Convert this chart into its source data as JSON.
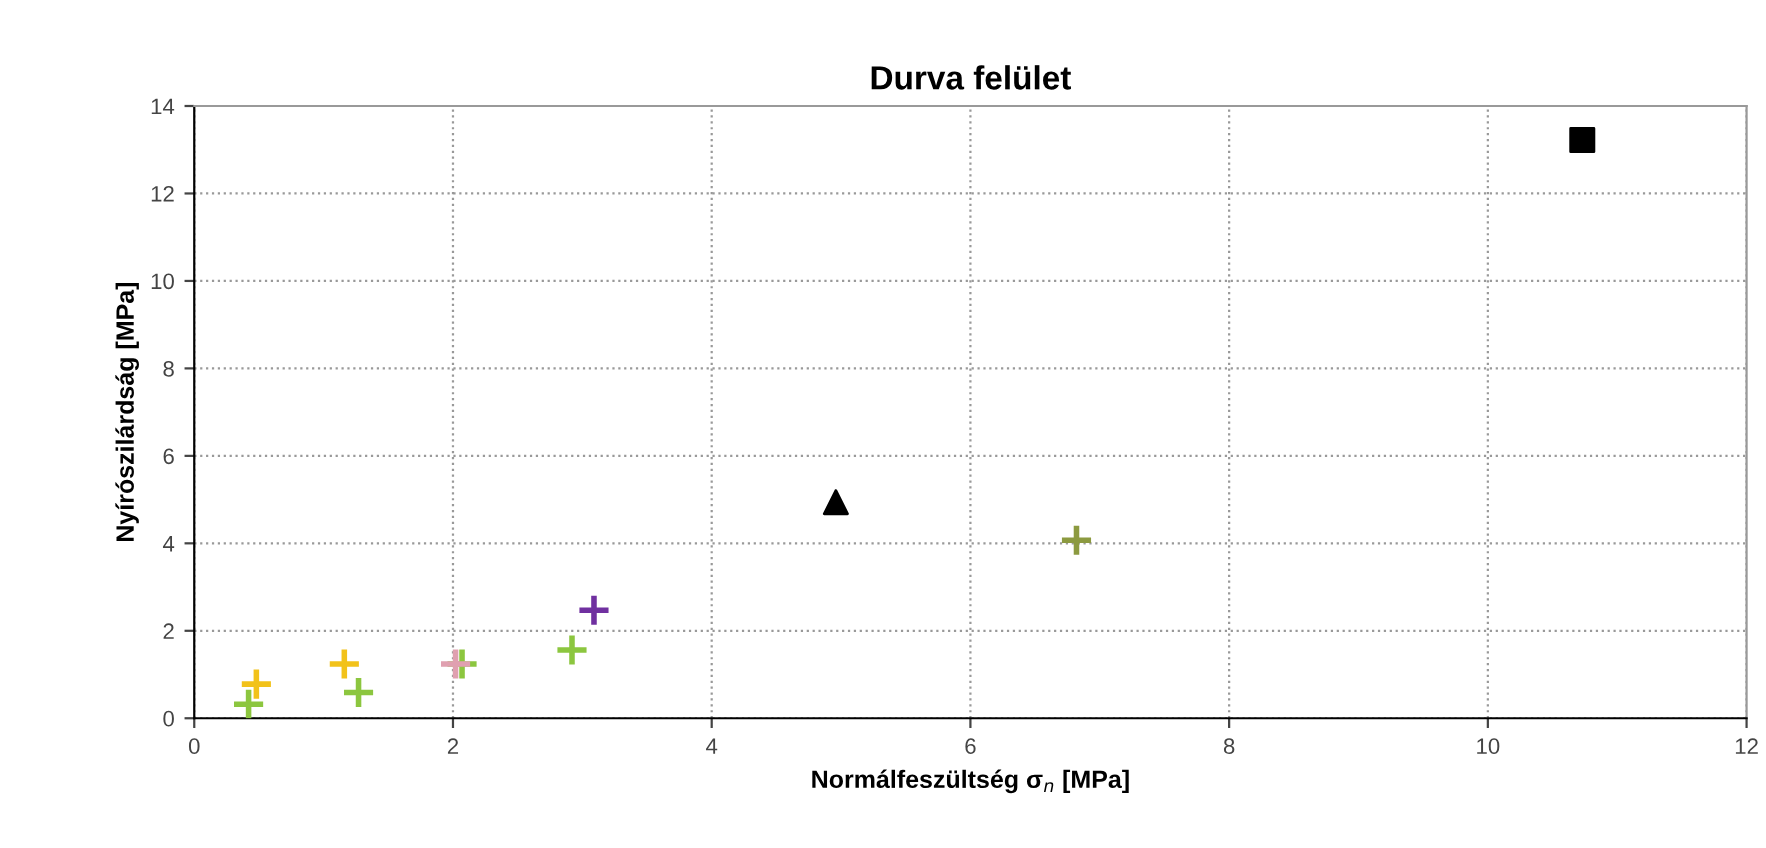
{
  "chart_data": {
    "type": "scatter",
    "title": "Durva felület",
    "xlabel": "Normálfeszültség σ$_{n}$ [MPa]",
    "ylabel": "Nyírószilárdság [MPa]",
    "xlim": [
      0,
      12
    ],
    "xticks": [
      0,
      2,
      4,
      6,
      8,
      10,
      12
    ],
    "ylim": [
      0,
      14
    ],
    "yticks": [
      0,
      2,
      4,
      6,
      8,
      10,
      12,
      14
    ],
    "grid": true,
    "legend": false,
    "series": [
      {
        "color": "#f2c21a",
        "marker": "cross",
        "x": [
          0.48,
          1.16
        ],
        "values": [
          0.78,
          1.24
        ]
      },
      {
        "color": "#8cc63f",
        "marker": "cross",
        "x": [
          0.42,
          1.27,
          2.07,
          2.92
        ],
        "values": [
          0.32,
          0.59,
          1.24,
          1.56
        ]
      },
      {
        "color": "#e0a0b0",
        "marker": "cross",
        "x": [
          2.02
        ],
        "values": [
          1.24
        ]
      },
      {
        "color": "#7030a0",
        "marker": "cross",
        "x": [
          3.09
        ],
        "values": [
          2.47
        ]
      },
      {
        "color": "#8c9a40",
        "marker": "cross",
        "x": [
          6.82
        ],
        "values": [
          4.07
        ]
      },
      {
        "color": "#000000",
        "marker": "triangle",
        "x": [
          4.96
        ],
        "values": [
          4.94
        ]
      },
      {
        "color": "#000000",
        "marker": "square",
        "x": [
          10.73
        ],
        "values": [
          13.22
        ]
      }
    ]
  }
}
